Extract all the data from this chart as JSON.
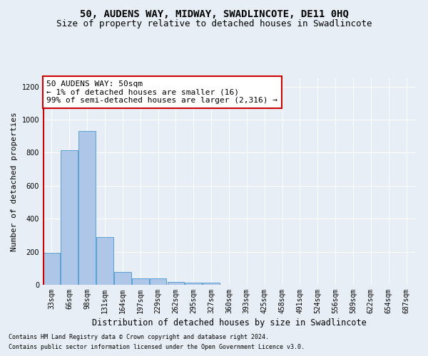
{
  "title": "50, AUDENS WAY, MIDWAY, SWADLINCOTE, DE11 0HQ",
  "subtitle": "Size of property relative to detached houses in Swadlincote",
  "xlabel": "Distribution of detached houses by size in Swadlincote",
  "ylabel": "Number of detached properties",
  "footnote1": "Contains HM Land Registry data © Crown copyright and database right 2024.",
  "footnote2": "Contains public sector information licensed under the Open Government Licence v3.0.",
  "bar_labels": [
    "33sqm",
    "66sqm",
    "98sqm",
    "131sqm",
    "164sqm",
    "197sqm",
    "229sqm",
    "262sqm",
    "295sqm",
    "327sqm",
    "360sqm",
    "393sqm",
    "425sqm",
    "458sqm",
    "491sqm",
    "524sqm",
    "556sqm",
    "589sqm",
    "622sqm",
    "654sqm",
    "687sqm"
  ],
  "bar_values": [
    192,
    815,
    930,
    290,
    78,
    37,
    37,
    18,
    12,
    12,
    0,
    0,
    0,
    0,
    0,
    0,
    0,
    0,
    0,
    0,
    0
  ],
  "bar_color": "#aec6e8",
  "bar_edge_color": "#5a9fd4",
  "highlight_color": "#cc0000",
  "ylim": [
    0,
    1250
  ],
  "yticks": [
    0,
    200,
    400,
    600,
    800,
    1000,
    1200
  ],
  "annotation_text": "50 AUDENS WAY: 50sqm\n← 1% of detached houses are smaller (16)\n99% of semi-detached houses are larger (2,316) →",
  "annotation_box_color": "#ffffff",
  "annotation_box_edge": "#cc0000",
  "bg_color": "#e8eef5",
  "grid_color": "#ffffff",
  "title_fontsize": 10,
  "subtitle_fontsize": 9,
  "xlabel_fontsize": 8.5,
  "ylabel_fontsize": 8,
  "tick_fontsize": 7,
  "annotation_fontsize": 8,
  "footnote_fontsize": 6
}
